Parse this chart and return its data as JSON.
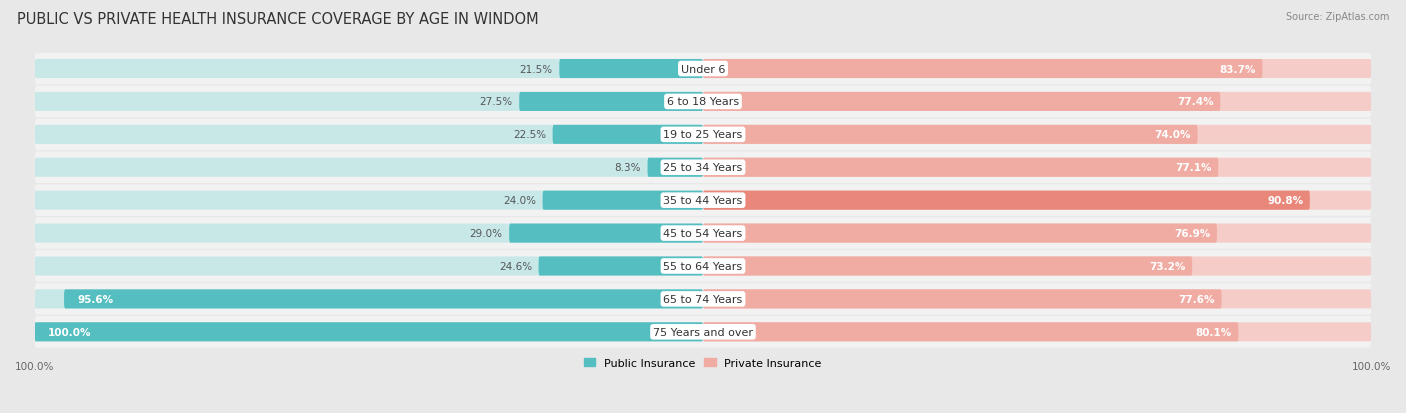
{
  "title": "PUBLIC VS PRIVATE HEALTH INSURANCE COVERAGE BY AGE IN WINDOM",
  "source": "Source: ZipAtlas.com",
  "categories": [
    "Under 6",
    "6 to 18 Years",
    "19 to 25 Years",
    "25 to 34 Years",
    "35 to 44 Years",
    "45 to 54 Years",
    "55 to 64 Years",
    "65 to 74 Years",
    "75 Years and over"
  ],
  "public_values": [
    21.5,
    27.5,
    22.5,
    8.3,
    24.0,
    29.0,
    24.6,
    95.6,
    100.0
  ],
  "private_values": [
    83.7,
    77.4,
    74.0,
    77.1,
    90.8,
    76.9,
    73.2,
    77.6,
    80.1
  ],
  "public_color": "#55bec0",
  "private_color_dark": "#e8877a",
  "private_color_light": "#f0aba3",
  "background_color": "#e8e8e8",
  "row_bg_color": "#f2f2f2",
  "bar_bg_public": "#c8e8e8",
  "bar_bg_private": "#f5ccc8",
  "max_value": 100.0,
  "legend_public": "Public Insurance",
  "legend_private": "Private Insurance",
  "title_fontsize": 10.5,
  "label_fontsize": 8,
  "value_fontsize": 7.5,
  "source_fontsize": 7
}
